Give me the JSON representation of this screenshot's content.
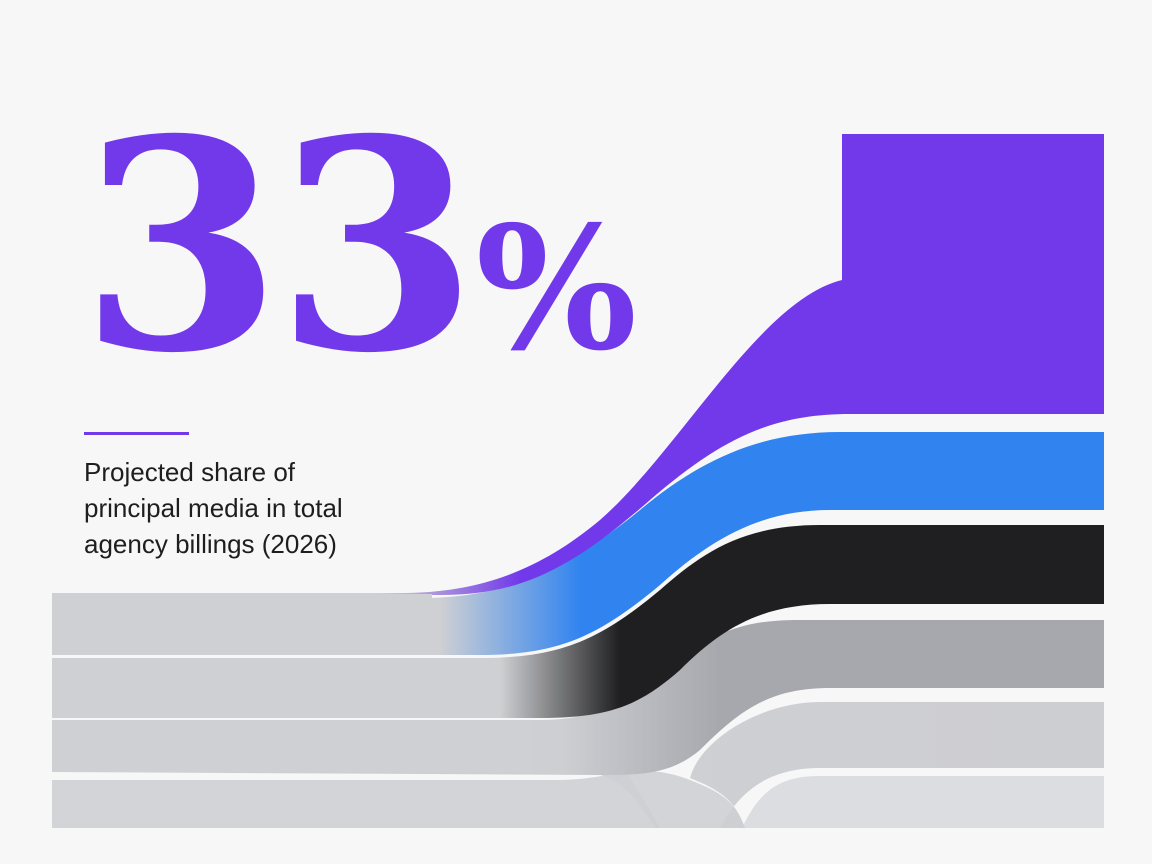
{
  "chart_data": {
    "type": "area",
    "stat_value": "33",
    "stat_unit": "%",
    "caption_lines": [
      "Projected share of",
      "principal media in total",
      "agency billings (2026)"
    ],
    "highlight_value": 33,
    "series": [
      {
        "color": "#7239ea"
      },
      {
        "color": "#3184f0"
      },
      {
        "color": "#1f1f21"
      },
      {
        "color": "#a6a8ad"
      },
      {
        "color": "#cfd0d3"
      },
      {
        "color": "#dcdde0"
      }
    ],
    "colors": {
      "accent": "#7239ea",
      "blue": "#3184f0",
      "dark": "#1f1f21",
      "gray": "#cdcfd3",
      "background": "#f7f7f8"
    }
  }
}
